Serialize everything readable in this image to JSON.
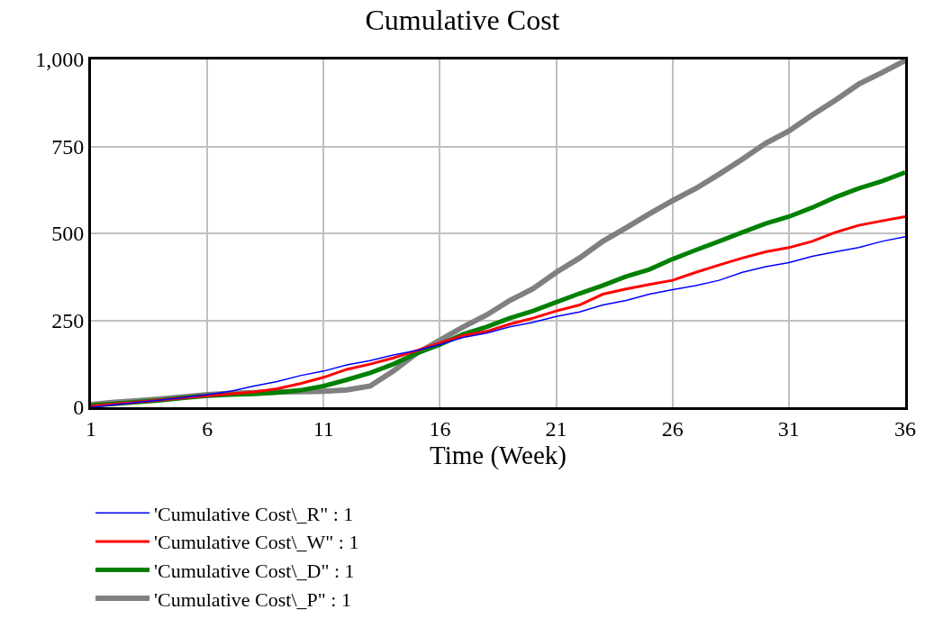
{
  "chart_data": {
    "type": "line",
    "title": "Cumulative Cost",
    "xlabel": "Time (Week)",
    "x": [
      1,
      2,
      3,
      4,
      5,
      6,
      7,
      8,
      9,
      10,
      11,
      12,
      13,
      14,
      15,
      16,
      17,
      18,
      19,
      20,
      21,
      22,
      23,
      24,
      25,
      26,
      27,
      28,
      29,
      30,
      31,
      32,
      33,
      34,
      35,
      36
    ],
    "series": [
      {
        "name": "'Cumulative Cost\\_R\" : 1",
        "color": "#0000ff",
        "values": [
          0,
          7,
          14,
          21,
          28,
          36,
          46,
          61,
          74,
          91,
          104,
          122,
          134,
          150,
          163,
          180,
          201,
          213,
          231,
          244,
          261,
          274,
          294,
          307,
          325,
          338,
          350,
          365,
          388,
          404,
          416,
          434,
          447,
          459,
          477,
          490
        ]
      },
      {
        "name": "'Cumulative Cost\\_W\" : 1",
        "color": "#ff0000",
        "values": [
          3,
          9,
          15,
          21,
          27,
          33,
          38,
          44,
          53,
          68,
          86,
          109,
          124,
          142,
          163,
          185,
          206,
          218,
          239,
          256,
          277,
          294,
          325,
          340,
          353,
          365,
          388,
          409,
          429,
          447,
          459,
          477,
          503,
          523,
          536,
          548
        ]
      },
      {
        "name": "'Cumulative Cost\\_D\" : 1",
        "color": "#008000",
        "values": [
          5,
          10,
          15,
          20,
          27,
          33,
          36,
          38,
          42,
          49,
          61,
          79,
          99,
          124,
          155,
          180,
          210,
          231,
          256,
          277,
          302,
          327,
          350,
          376,
          396,
          426,
          452,
          477,
          503,
          528,
          548,
          574,
          604,
          629,
          650,
          675
        ]
      },
      {
        "name": "'Cumulative Cost\\_P\" : 1",
        "color": "#808080",
        "values": [
          8,
          14,
          19,
          24,
          30,
          36,
          40,
          42,
          44,
          45,
          46,
          50,
          61,
          104,
          155,
          193,
          231,
          265,
          307,
          341,
          388,
          429,
          477,
          516,
          556,
          594,
          629,
          670,
          713,
          759,
          794,
          840,
          883,
          929,
          962,
          997
        ]
      }
    ],
    "xlim": [
      1,
      36
    ],
    "xticks": [
      1,
      6,
      11,
      16,
      21,
      26,
      31,
      36
    ],
    "ylim": [
      0,
      1000
    ],
    "yticks": [
      0,
      250,
      500,
      750,
      {
        "value": 1000,
        "label": "1,000"
      }
    ],
    "grid": true,
    "legend": "bottom",
    "line_style": "solid"
  }
}
